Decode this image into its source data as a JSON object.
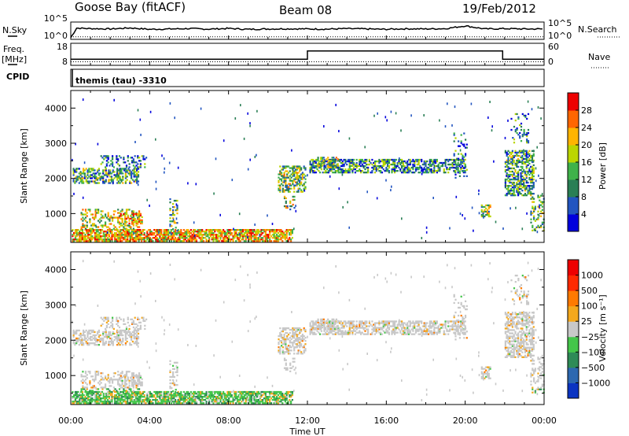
{
  "header": {
    "station": "Goose Bay (fitACF)",
    "beam": "Beam 08",
    "date": "19/Feb/2012"
  },
  "side_labels": {
    "nsky": "N.Sky",
    "nsearch": "N.Search",
    "freq": "Freq.",
    "freq_unit": "[MHz]",
    "nave": "Nave",
    "cpid": "CPID"
  },
  "cpid_text": "themis (tau) -3310",
  "chart_data": [
    {
      "type": "line",
      "name": "noise",
      "y_ticks_left": [
        "10^5",
        "10^0"
      ],
      "y_ticks_right": [
        "10^5",
        "10^0"
      ],
      "x_hours": [
        0,
        0.3,
        1,
        2,
        3,
        4,
        5,
        6,
        7,
        8,
        9,
        10,
        11,
        12,
        13,
        14,
        15,
        16,
        17,
        18,
        19,
        20,
        21,
        22,
        23,
        24
      ],
      "nsky": [
        0.1,
        0.65,
        0.62,
        0.6,
        0.66,
        0.58,
        0.6,
        0.62,
        0.59,
        0.63,
        0.58,
        0.6,
        0.61,
        0.6,
        0.59,
        0.62,
        0.6,
        0.58,
        0.61,
        0.6,
        0.62,
        0.78,
        0.6,
        0.62,
        0.6,
        0.6
      ],
      "nsearch": [
        0.15,
        0.15,
        0.15,
        0.15,
        0.15,
        0.15,
        0.15,
        0.15,
        0.15,
        0.15,
        0.15,
        0.15,
        0.15,
        0.15,
        0.15,
        0.15,
        0.15,
        0.15,
        0.15,
        0.15,
        0.15,
        0.15,
        0.15,
        0.15,
        0.15,
        0.15
      ]
    },
    {
      "type": "line",
      "name": "frequency-nave",
      "y_ticks_left": [
        "18",
        "8"
      ],
      "y_ticks_right": [
        "60",
        "0"
      ],
      "freq_steps": [
        [
          0,
          10.8
        ],
        [
          0.15,
          10.8
        ],
        [
          12,
          10.8
        ],
        [
          12,
          14.5
        ],
        [
          21.9,
          14.5
        ],
        [
          21.9,
          10.8
        ],
        [
          24,
          10.8
        ]
      ],
      "nave_steps": [
        [
          0,
          9.6
        ],
        [
          24,
          9.6
        ]
      ]
    },
    {
      "type": "heatmap",
      "name": "power",
      "ylabel": "Slant Range [km]",
      "ylim": [
        180,
        4500
      ],
      "y_ticks": [
        1000,
        2000,
        3000,
        4000
      ],
      "xlim": [
        0,
        24
      ],
      "colorbar_label": "Power [dB]",
      "colorbar_ticks": [
        "28",
        "24",
        "20",
        "16",
        "12",
        "8",
        "4"
      ],
      "colors": [
        "#0000dd",
        "#2255c0",
        "#2a7f55",
        "#3fb24a",
        "#bbd500",
        "#ffb400",
        "#ff6600",
        "#ee0000"
      ]
    },
    {
      "type": "heatmap",
      "name": "velocity",
      "ylabel": "Slant Range [km]",
      "ylim": [
        180,
        4500
      ],
      "y_ticks": [
        1000,
        2000,
        3000,
        4000
      ],
      "xlim": [
        0,
        24
      ],
      "xlabel": "Time UT",
      "x_ticks": [
        "00:00",
        "04:00",
        "08:00",
        "12:00",
        "16:00",
        "20:00",
        "00:00"
      ],
      "colorbar_label": "Velocity [m s⁻¹]",
      "colorbar_ticks": [
        "1000",
        "500",
        "100",
        "25",
        "−25",
        "−100",
        "−500",
        "−1000"
      ],
      "colors": [
        "#0b34c2",
        "#2d68b0",
        "#2e8b57",
        "#44c64a",
        "#c8c8c8",
        "#f4a81c",
        "#ff7a00",
        "#ff2a00",
        "#ee0000"
      ]
    }
  ]
}
